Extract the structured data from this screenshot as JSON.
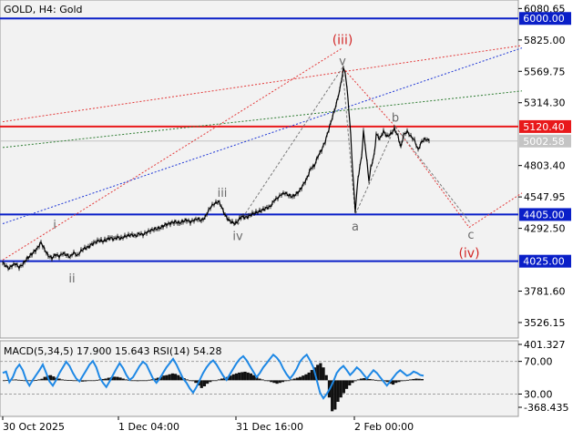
{
  "chart_data": [
    {
      "type": "line",
      "title": "GOLD, H4:  Gold",
      "ylim": [
        3400,
        6150
      ],
      "y_ticks": [
        "6080.65",
        "5825.00",
        "5569.75",
        "5314.30",
        "4803.40",
        "4547.95",
        "4292.50",
        "3781.60",
        "3526.15"
      ],
      "x_ticks": [
        "30 Oct 2025",
        "1 Dec 04:00",
        "31 Dec 16:00",
        "2 Feb 00:00"
      ],
      "current_price": 5002.58,
      "horizontal_levels": [
        {
          "value": 6000.0,
          "label": "6000.00",
          "color": "#0a1fc8"
        },
        {
          "value": 5120.4,
          "label": "5120.40",
          "color": "#e8191b"
        },
        {
          "value": 4405.0,
          "label": "4405.00",
          "color": "#0a1fc8"
        },
        {
          "value": 4025.0,
          "label": "4025.00",
          "color": "#0a1fc8"
        }
      ],
      "price_path": [
        {
          "i": 0,
          "v": 4010
        },
        {
          "i": 4,
          "v": 3985
        },
        {
          "i": 7,
          "v": 3965
        },
        {
          "i": 10,
          "v": 3990
        },
        {
          "i": 14,
          "v": 4005
        },
        {
          "i": 18,
          "v": 3975
        },
        {
          "i": 22,
          "v": 4000
        },
        {
          "i": 26,
          "v": 4040
        },
        {
          "i": 30,
          "v": 4070
        },
        {
          "i": 34,
          "v": 4100
        },
        {
          "i": 38,
          "v": 4130
        },
        {
          "i": 42,
          "v": 4180
        },
        {
          "i": 46,
          "v": 4120
        },
        {
          "i": 50,
          "v": 4070
        },
        {
          "i": 54,
          "v": 4050
        },
        {
          "i": 58,
          "v": 4080
        },
        {
          "i": 62,
          "v": 4065
        },
        {
          "i": 66,
          "v": 4090
        },
        {
          "i": 70,
          "v": 4075
        },
        {
          "i": 74,
          "v": 4060
        },
        {
          "i": 78,
          "v": 4095
        },
        {
          "i": 82,
          "v": 4070
        },
        {
          "i": 86,
          "v": 4110
        },
        {
          "i": 90,
          "v": 4130
        },
        {
          "i": 94,
          "v": 4140
        },
        {
          "i": 98,
          "v": 4165
        },
        {
          "i": 102,
          "v": 4180
        },
        {
          "i": 106,
          "v": 4195
        },
        {
          "i": 110,
          "v": 4185
        },
        {
          "i": 114,
          "v": 4200
        },
        {
          "i": 118,
          "v": 4215
        },
        {
          "i": 122,
          "v": 4205
        },
        {
          "i": 126,
          "v": 4220
        },
        {
          "i": 130,
          "v": 4210
        },
        {
          "i": 134,
          "v": 4225
        },
        {
          "i": 138,
          "v": 4235
        },
        {
          "i": 142,
          "v": 4240
        },
        {
          "i": 146,
          "v": 4230
        },
        {
          "i": 150,
          "v": 4250
        },
        {
          "i": 154,
          "v": 4240
        },
        {
          "i": 158,
          "v": 4260
        },
        {
          "i": 162,
          "v": 4275
        },
        {
          "i": 166,
          "v": 4285
        },
        {
          "i": 170,
          "v": 4290
        },
        {
          "i": 174,
          "v": 4300
        },
        {
          "i": 178,
          "v": 4320
        },
        {
          "i": 182,
          "v": 4330
        },
        {
          "i": 186,
          "v": 4340
        },
        {
          "i": 190,
          "v": 4345
        },
        {
          "i": 194,
          "v": 4335
        },
        {
          "i": 198,
          "v": 4350
        },
        {
          "i": 202,
          "v": 4360
        },
        {
          "i": 206,
          "v": 4345
        },
        {
          "i": 210,
          "v": 4360
        },
        {
          "i": 214,
          "v": 4370
        },
        {
          "i": 218,
          "v": 4355
        },
        {
          "i": 222,
          "v": 4380
        },
        {
          "i": 226,
          "v": 4440
        },
        {
          "i": 230,
          "v": 4480
        },
        {
          "i": 234,
          "v": 4500
        },
        {
          "i": 237,
          "v": 4510
        },
        {
          "i": 240,
          "v": 4470
        },
        {
          "i": 244,
          "v": 4400
        },
        {
          "i": 248,
          "v": 4360
        },
        {
          "i": 252,
          "v": 4340
        },
        {
          "i": 255,
          "v": 4330
        },
        {
          "i": 258,
          "v": 4350
        },
        {
          "i": 262,
          "v": 4390
        },
        {
          "i": 266,
          "v": 4380
        },
        {
          "i": 270,
          "v": 4390
        },
        {
          "i": 274,
          "v": 4410
        },
        {
          "i": 278,
          "v": 4420
        },
        {
          "i": 282,
          "v": 4430
        },
        {
          "i": 286,
          "v": 4445
        },
        {
          "i": 290,
          "v": 4460
        },
        {
          "i": 294,
          "v": 4470
        },
        {
          "i": 298,
          "v": 4520
        },
        {
          "i": 302,
          "v": 4540
        },
        {
          "i": 306,
          "v": 4570
        },
        {
          "i": 310,
          "v": 4580
        },
        {
          "i": 314,
          "v": 4560
        },
        {
          "i": 318,
          "v": 4550
        },
        {
          "i": 322,
          "v": 4570
        },
        {
          "i": 326,
          "v": 4600
        },
        {
          "i": 330,
          "v": 4650
        },
        {
          "i": 334,
          "v": 4700
        },
        {
          "i": 338,
          "v": 4780
        },
        {
          "i": 342,
          "v": 4800
        },
        {
          "i": 346,
          "v": 4880
        },
        {
          "i": 350,
          "v": 4930
        },
        {
          "i": 354,
          "v": 5000
        },
        {
          "i": 358,
          "v": 5100
        },
        {
          "i": 362,
          "v": 5200
        },
        {
          "i": 366,
          "v": 5300
        },
        {
          "i": 370,
          "v": 5420
        },
        {
          "i": 374,
          "v": 5590
        },
        {
          "i": 376,
          "v": 5560
        },
        {
          "i": 379,
          "v": 5350
        },
        {
          "i": 382,
          "v": 5050
        },
        {
          "i": 384,
          "v": 4780
        },
        {
          "i": 387,
          "v": 4430
        },
        {
          "i": 390,
          "v": 4700
        },
        {
          "i": 394,
          "v": 4880
        },
        {
          "i": 396,
          "v": 5080
        },
        {
          "i": 398,
          "v": 4960
        },
        {
          "i": 402,
          "v": 4680
        },
        {
          "i": 404,
          "v": 4780
        },
        {
          "i": 408,
          "v": 4900
        },
        {
          "i": 410,
          "v": 5060
        },
        {
          "i": 414,
          "v": 5020
        },
        {
          "i": 418,
          "v": 5080
        },
        {
          "i": 422,
          "v": 5040
        },
        {
          "i": 426,
          "v": 5060
        },
        {
          "i": 430,
          "v": 5100
        },
        {
          "i": 434,
          "v": 5040
        },
        {
          "i": 437,
          "v": 4950
        },
        {
          "i": 440,
          "v": 5050
        },
        {
          "i": 444,
          "v": 5080
        },
        {
          "i": 448,
          "v": 5040
        },
        {
          "i": 452,
          "v": 5010
        },
        {
          "i": 456,
          "v": 4930
        },
        {
          "i": 460,
          "v": 5000
        },
        {
          "i": 464,
          "v": 5020
        },
        {
          "i": 468,
          "v": 5003
        }
      ],
      "wave_labels": [
        {
          "text": "i",
          "i": 57,
          "v": 4260,
          "color": "#6b6b6b",
          "pos": "above"
        },
        {
          "text": "ii",
          "i": 76,
          "v": 3955,
          "color": "#6b6b6b",
          "pos": "below"
        },
        {
          "text": "iii",
          "i": 241,
          "v": 4520,
          "color": "#6b6b6b",
          "pos": "above"
        },
        {
          "text": "iv",
          "i": 258,
          "v": 4300,
          "color": "#6b6b6b",
          "pos": "below"
        },
        {
          "text": "v",
          "i": 373,
          "v": 5590,
          "color": "#6b6b6b",
          "pos": "above"
        },
        {
          "text": "(iii)",
          "i": 373,
          "v": 5760,
          "color": "#d22626",
          "pos": "above"
        },
        {
          "text": "a",
          "i": 387,
          "v": 4380,
          "color": "#6b6b6b",
          "pos": "below"
        },
        {
          "text": "b",
          "i": 431,
          "v": 5130,
          "color": "#6b6b6b",
          "pos": "above"
        },
        {
          "text": "c",
          "i": 514,
          "v": 4310,
          "color": "#6b6b6b",
          "pos": "below"
        },
        {
          "text": "(iv)",
          "i": 512,
          "v": 4160,
          "color": "#d22626",
          "pos": "below"
        }
      ],
      "trend_lines": [
        {
          "name": "red-dotted-lower",
          "color": "#e33b3b",
          "dash": "2,2",
          "points": [
            {
              "i": 0,
              "v": 4035
            },
            {
              "i": 373,
              "v": 5760
            }
          ]
        },
        {
          "name": "red-dotted-upper",
          "color": "#e33b3b",
          "dash": "2,2",
          "points": [
            {
              "i": 0,
              "v": 5160
            },
            {
              "i": 570,
              "v": 5780
            }
          ]
        },
        {
          "name": "blue-dotted",
          "color": "#1f37d6",
          "dash": "2,2",
          "points": [
            {
              "i": 0,
              "v": 4330
            },
            {
              "i": 570,
              "v": 5760
            }
          ]
        },
        {
          "name": "green-dotted",
          "color": "#2e7d32",
          "dash": "2,2",
          "points": [
            {
              "i": 0,
              "v": 4950
            },
            {
              "i": 570,
              "v": 5410
            }
          ]
        },
        {
          "name": "forecast-red-dotted",
          "color": "#e33b3b",
          "dash": "2,2",
          "points": [
            {
              "i": 373,
              "v": 5600
            },
            {
              "i": 431,
              "v": 5120
            },
            {
              "i": 512,
              "v": 4300
            },
            {
              "i": 570,
              "v": 4580
            }
          ]
        },
        {
          "name": "wave-gray-dashed",
          "color": "#7a7a7a",
          "dash": "3,2",
          "points": [
            {
              "i": 258,
              "v": 4320
            },
            {
              "i": 373,
              "v": 5600
            },
            {
              "i": 387,
              "v": 4405
            },
            {
              "i": 431,
              "v": 5120
            },
            {
              "i": 514,
              "v": 4330
            }
          ]
        }
      ]
    },
    {
      "type": "bar",
      "title": "MACD(5,34,5) 17.900 15.643 RSI(14) 54.28",
      "ylim": [
        -420,
        460
      ],
      "y_ticks": [
        "401.327",
        "70.00",
        "30.00",
        "-368.435"
      ],
      "series": [
        {
          "name": "MACD(5,34,5)",
          "role": "histogram",
          "color": "#111111"
        },
        {
          "name": "RSI(14)",
          "role": "line",
          "color": "#1e88e5"
        }
      ],
      "macd_hist": [
        0,
        2,
        5,
        8,
        10,
        6,
        3,
        -2,
        -6,
        -4,
        -2,
        4,
        10,
        18,
        40,
        55,
        60,
        45,
        30,
        20,
        10,
        6,
        4,
        2,
        0,
        -5,
        -10,
        -15,
        -12,
        -8,
        -4,
        0,
        5,
        10,
        15,
        20,
        30,
        35,
        42,
        40,
        32,
        20,
        10,
        5,
        0,
        -5,
        -10,
        -8,
        -4,
        0,
        6,
        12,
        20,
        30,
        40,
        55,
        60,
        70,
        80,
        75,
        60,
        40,
        25,
        10,
        0,
        -10,
        -30,
        -60,
        -90,
        -70,
        -40,
        -20,
        -5,
        0,
        10,
        20,
        30,
        40,
        55,
        70,
        80,
        90,
        95,
        100,
        90,
        80,
        60,
        40,
        20,
        10,
        0,
        -10,
        -20,
        -30,
        -40,
        -30,
        -20,
        -10,
        0,
        10,
        20,
        30,
        40,
        55,
        70,
        90,
        120,
        150,
        180,
        200,
        150,
        60,
        -200,
        -360,
        -340,
        -250,
        -200,
        -150,
        -100,
        -60,
        -30,
        -10,
        10,
        20,
        25,
        20,
        15,
        10,
        5,
        0,
        -5,
        -10,
        -20,
        -40,
        -50,
        -30,
        -20,
        -10,
        0,
        5,
        10,
        15,
        20,
        18,
        15
      ],
      "rsi": [
        58,
        60,
        45,
        52,
        64,
        70,
        62,
        48,
        40,
        48,
        55,
        62,
        70,
        58,
        46,
        40,
        48,
        58,
        66,
        74,
        68,
        58,
        50,
        46,
        54,
        62,
        70,
        75,
        66,
        52,
        44,
        38,
        46,
        55,
        64,
        72,
        65,
        55,
        48,
        52,
        60,
        68,
        74,
        70,
        60,
        50,
        44,
        50,
        58,
        66,
        72,
        78,
        70,
        60,
        50,
        44,
        36,
        30,
        38,
        48,
        58,
        66,
        72,
        76,
        70,
        62,
        54,
        48,
        56,
        64,
        72,
        78,
        82,
        76,
        68,
        60,
        52,
        58,
        66,
        72,
        78,
        84,
        80,
        74,
        64,
        56,
        50,
        56,
        64,
        74,
        80,
        84,
        76,
        66,
        48,
        30,
        22,
        28,
        36,
        46,
        58,
        64,
        68,
        62,
        55,
        60,
        66,
        62,
        56,
        50,
        56,
        62,
        58,
        52,
        46,
        40,
        46,
        52,
        58,
        62,
        58,
        54,
        56,
        60,
        58,
        55,
        54
      ]
    }
  ],
  "x_axis_labels": [
    "30 Oct 2025",
    "1 Dec 04:00",
    "31 Dec 16:00",
    "2 Feb 00:00"
  ]
}
